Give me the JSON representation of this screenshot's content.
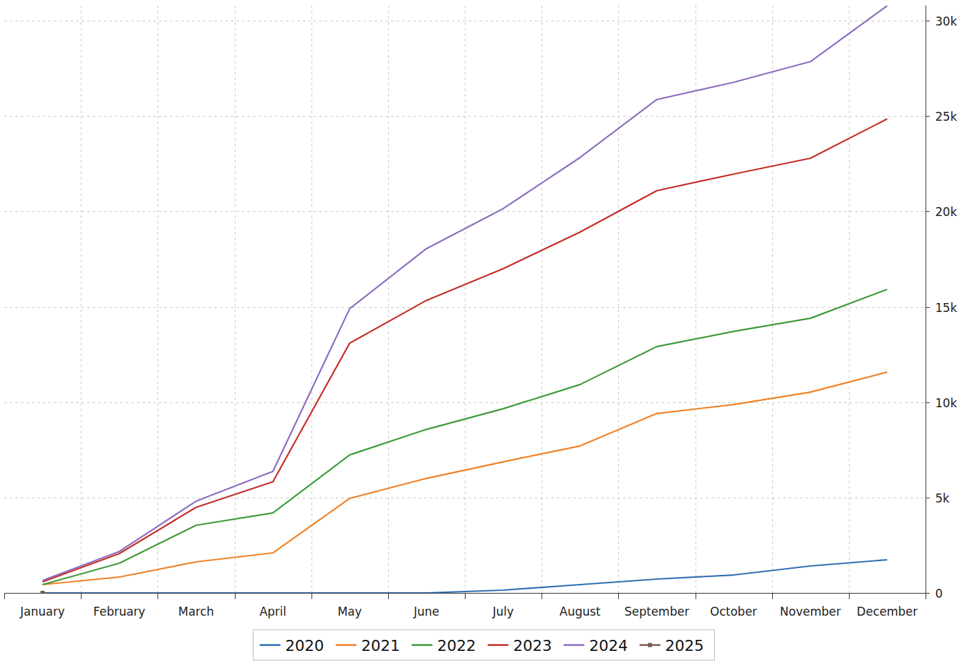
{
  "chart_data": {
    "type": "line",
    "categories": [
      "January",
      "February",
      "March",
      "April",
      "May",
      "June",
      "July",
      "August",
      "September",
      "October",
      "November",
      "December"
    ],
    "series": [
      {
        "name": "2020",
        "color": "#2f6db3",
        "values": [
          0,
          0,
          0,
          0,
          0,
          0,
          145,
          434,
          724,
          940,
          1411,
          1737
        ]
      },
      {
        "name": "2021",
        "color": "#f08024",
        "values": [
          434,
          832,
          1628,
          2098,
          4957,
          6006,
          6874,
          7706,
          9407,
          9877,
          10528,
          11577
        ]
      },
      {
        "name": "2022",
        "color": "#3c9a38",
        "values": [
          434,
          1556,
          3546,
          4197,
          7236,
          8575,
          9660,
          10926,
          12916,
          13712,
          14400,
          15919
        ]
      },
      {
        "name": "2023",
        "color": "#c42b24",
        "values": [
          579,
          2062,
          4486,
          5825,
          13097,
          15340,
          17004,
          18922,
          21092,
          21961,
          22793,
          24855
        ]
      },
      {
        "name": "2024",
        "color": "#8c6bbf",
        "values": [
          651,
          2171,
          4812,
          6368,
          14906,
          18054,
          20152,
          22829,
          25869,
          26773,
          27858,
          30789
        ]
      },
      {
        "name": "2025",
        "color": "#7a5a4e",
        "marker": "square",
        "values": [
          0,
          null,
          null,
          null,
          null,
          null,
          null,
          null,
          null,
          null,
          null,
          null
        ]
      }
    ],
    "ylim": [
      0,
      30800
    ],
    "yticks": [
      0,
      {
        "value": 5000,
        "label": "5k"
      },
      {
        "value": 10000,
        "label": "10k"
      },
      {
        "value": 15000,
        "label": "15k"
      },
      {
        "value": 20000,
        "label": "20k"
      },
      {
        "value": 25000,
        "label": "25k"
      },
      {
        "value": 30000,
        "label": "30k"
      }
    ],
    "grid": true,
    "legend": "bottom"
  }
}
